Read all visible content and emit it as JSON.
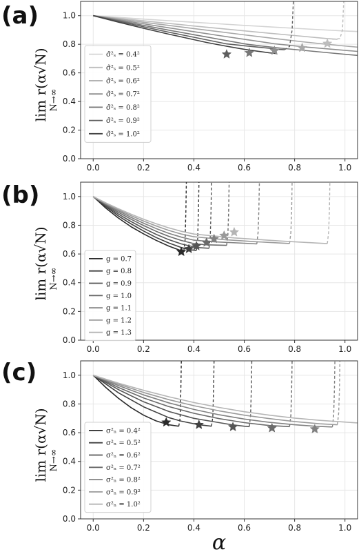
{
  "figure": {
    "xlabel": "α"
  },
  "chart_data": [
    {
      "type": "line",
      "letter": "(a)",
      "ylabel_main": "lim r(α√N)",
      "ylabel_sub": "N→∞",
      "xlim": [
        -0.05,
        1.05
      ],
      "ylim": [
        0.0,
        1.1
      ],
      "xticks": [
        "0.0",
        "0.2",
        "0.4",
        "0.6",
        "0.8",
        "1.0"
      ],
      "yticks": [
        "0.0",
        "0.2",
        "0.4",
        "0.6",
        "0.8",
        "1.0"
      ],
      "grid": true,
      "legend_position": "center-left",
      "series": [
        {
          "name": "σ̃²ₛ = 0.4²",
          "color": "#d4d4d4",
          "x": [
            0.0,
            0.1,
            0.2,
            0.3,
            0.4,
            0.5,
            0.6,
            0.7,
            0.8,
            0.9,
            1.0,
            1.05
          ],
          "y": [
            1.0,
            0.988,
            0.976,
            0.965,
            0.954,
            0.943,
            0.932,
            0.922,
            0.912,
            0.902,
            0.893,
            0.889
          ],
          "star": null,
          "dash": null
        },
        {
          "name": "σ̃²ₛ = 0.5²",
          "color": "#bdbdbd",
          "x": [
            0.0,
            0.1,
            0.2,
            0.3,
            0.4,
            0.5,
            0.6,
            0.7,
            0.8,
            0.9,
            0.93,
            0.97
          ],
          "y": [
            1.0,
            0.982,
            0.964,
            0.946,
            0.928,
            0.911,
            0.894,
            0.877,
            0.861,
            0.845,
            0.84,
            0.835
          ],
          "star": [
            0.93,
            0.805
          ],
          "dash": [
            [
              0.95,
              0.835
            ],
            [
              0.98,
              0.84
            ],
            [
              0.99,
              0.9
            ],
            [
              0.995,
              1.1
            ]
          ]
        },
        {
          "name": "σ̃²ₛ = 0.6²",
          "color": "#a8a8a8",
          "x": [
            0.0,
            0.1,
            0.2,
            0.3,
            0.4,
            0.5,
            0.6,
            0.7,
            0.8,
            0.83,
            0.95,
            1.05
          ],
          "y": [
            1.0,
            0.977,
            0.954,
            0.932,
            0.91,
            0.888,
            0.866,
            0.845,
            0.824,
            0.818,
            0.796,
            0.78
          ],
          "star": [
            0.83,
            0.775
          ],
          "dash": null
        },
        {
          "name": "σ̃²ₛ = 0.7²",
          "color": "#8f8f8f",
          "x": [
            0.0,
            0.1,
            0.2,
            0.3,
            0.4,
            0.5,
            0.6,
            0.7,
            0.72,
            0.85,
            0.95,
            1.05
          ],
          "y": [
            1.0,
            0.971,
            0.943,
            0.915,
            0.888,
            0.861,
            0.835,
            0.809,
            0.804,
            0.78,
            0.765,
            0.75
          ],
          "star": [
            0.72,
            0.755
          ],
          "dash": null
        },
        {
          "name": "σ̃²ₛ = 0.8²",
          "color": "#777777",
          "x": [
            0.0,
            0.1,
            0.2,
            0.3,
            0.4,
            0.5,
            0.6,
            0.62,
            0.75,
            0.85,
            0.95,
            1.05
          ],
          "y": [
            1.0,
            0.966,
            0.932,
            0.899,
            0.867,
            0.835,
            0.804,
            0.798,
            0.772,
            0.755,
            0.738,
            0.722
          ],
          "star": [
            0.62,
            0.74
          ],
          "dash": null
        },
        {
          "name": "σ̃²ₛ = 0.9²",
          "color": "#5e5e5e",
          "x": [
            0.0,
            0.1,
            0.2,
            0.3,
            0.4,
            0.53,
            0.6,
            0.7,
            0.73,
            0.76
          ],
          "y": [
            1.0,
            0.961,
            0.922,
            0.885,
            0.849,
            0.803,
            0.79,
            0.772,
            0.765,
            0.762
          ],
          "star": [
            0.53,
            0.73
          ],
          "dash": [
            [
              0.76,
              0.762
            ],
            [
              0.78,
              0.785
            ],
            [
              0.79,
              0.9
            ],
            [
              0.795,
              1.1
            ]
          ]
        },
        {
          "name": "σ̃²ₛ = 1.0²",
          "color": "#404040",
          "x": [
            0.0,
            0.1,
            0.2,
            0.3,
            0.4,
            0.45,
            0.5,
            0.55,
            0.6,
            0.65,
            0.7,
            0.73
          ],
          "y": [
            1.0,
            0.955,
            0.912,
            0.871,
            0.832,
            0.813,
            0.796,
            0.78,
            0.765,
            0.752,
            0.74,
            0.735
          ],
          "star": null,
          "dash": null
        }
      ]
    },
    {
      "type": "line",
      "letter": "(b)",
      "ylabel_main": "lim r(α√N)",
      "ylabel_sub": "N→∞",
      "xlim": [
        -0.05,
        1.05
      ],
      "ylim": [
        0.0,
        1.1
      ],
      "xticks": [
        "0.0",
        "0.2",
        "0.4",
        "0.6",
        "0.8",
        "1.0"
      ],
      "yticks": [
        "0.0",
        "0.2",
        "0.4",
        "0.6",
        "0.8",
        "1.0"
      ],
      "grid": true,
      "legend_position": "lower-left",
      "series": [
        {
          "name": "g = 0.7",
          "color": "#2a2a2a",
          "x": [
            0.0,
            0.05,
            0.1,
            0.15,
            0.2,
            0.25,
            0.3,
            0.35,
            0.36
          ],
          "y": [
            1.0,
            0.92,
            0.85,
            0.79,
            0.74,
            0.695,
            0.655,
            0.622,
            0.618
          ],
          "star": [
            0.35,
            0.615
          ],
          "dash": [
            [
              0.36,
              0.618
            ],
            [
              0.365,
              0.7
            ],
            [
              0.368,
              0.9
            ],
            [
              0.37,
              1.1
            ]
          ]
        },
        {
          "name": "g = 0.8",
          "color": "#404040",
          "x": [
            0.0,
            0.05,
            0.1,
            0.15,
            0.2,
            0.25,
            0.3,
            0.35,
            0.38,
            0.41
          ],
          "y": [
            1.0,
            0.93,
            0.865,
            0.81,
            0.76,
            0.715,
            0.677,
            0.645,
            0.63,
            0.625
          ],
          "star": [
            0.38,
            0.635
          ],
          "dash": [
            [
              0.41,
              0.625
            ],
            [
              0.415,
              0.7
            ],
            [
              0.418,
              0.9
            ],
            [
              0.42,
              1.1
            ]
          ]
        },
        {
          "name": "g = 0.9",
          "color": "#555555",
          "x": [
            0.0,
            0.05,
            0.1,
            0.15,
            0.2,
            0.25,
            0.3,
            0.35,
            0.41,
            0.46
          ],
          "y": [
            1.0,
            0.937,
            0.878,
            0.826,
            0.779,
            0.737,
            0.7,
            0.67,
            0.645,
            0.64
          ],
          "star": [
            0.41,
            0.655
          ],
          "dash": [
            [
              0.46,
              0.64
            ],
            [
              0.465,
              0.72
            ],
            [
              0.468,
              0.9
            ],
            [
              0.47,
              1.1
            ]
          ]
        },
        {
          "name": "g = 1.0",
          "color": "#6a6a6a",
          "x": [
            0.0,
            0.05,
            0.1,
            0.15,
            0.2,
            0.25,
            0.3,
            0.35,
            0.4,
            0.45,
            0.53
          ],
          "y": [
            1.0,
            0.943,
            0.89,
            0.842,
            0.798,
            0.758,
            0.723,
            0.694,
            0.672,
            0.664,
            0.66
          ],
          "star": [
            0.45,
            0.68
          ],
          "dash": [
            [
              0.53,
              0.66
            ],
            [
              0.535,
              0.74
            ],
            [
              0.538,
              0.9
            ],
            [
              0.54,
              1.1
            ]
          ]
        },
        {
          "name": "g = 1.1",
          "color": "#808080",
          "x": [
            0.0,
            0.05,
            0.1,
            0.15,
            0.2,
            0.25,
            0.3,
            0.35,
            0.4,
            0.48,
            0.6,
            0.65
          ],
          "y": [
            1.0,
            0.948,
            0.9,
            0.855,
            0.814,
            0.777,
            0.744,
            0.717,
            0.696,
            0.685,
            0.675,
            0.67
          ],
          "star": [
            0.48,
            0.705
          ],
          "dash": [
            [
              0.65,
              0.67
            ],
            [
              0.655,
              0.75
            ],
            [
              0.658,
              0.9
            ],
            [
              0.66,
              1.1
            ]
          ]
        },
        {
          "name": "g = 1.2",
          "color": "#9a9a9a",
          "x": [
            0.0,
            0.05,
            0.1,
            0.15,
            0.2,
            0.25,
            0.3,
            0.35,
            0.4,
            0.52,
            0.65,
            0.78
          ],
          "y": [
            1.0,
            0.952,
            0.908,
            0.867,
            0.829,
            0.795,
            0.764,
            0.739,
            0.72,
            0.7,
            0.685,
            0.673
          ],
          "star": [
            0.52,
            0.728
          ],
          "dash": [
            [
              0.78,
              0.673
            ],
            [
              0.785,
              0.75
            ],
            [
              0.788,
              0.9
            ],
            [
              0.79,
              1.1
            ]
          ]
        },
        {
          "name": "g = 1.3",
          "color": "#b5b5b5",
          "x": [
            0.0,
            0.05,
            0.1,
            0.15,
            0.2,
            0.25,
            0.3,
            0.35,
            0.4,
            0.56,
            0.75,
            0.93
          ],
          "y": [
            1.0,
            0.956,
            0.915,
            0.877,
            0.842,
            0.811,
            0.782,
            0.758,
            0.739,
            0.712,
            0.69,
            0.672
          ],
          "star": [
            0.56,
            0.752
          ],
          "dash": [
            [
              0.93,
              0.672
            ],
            [
              0.935,
              0.75
            ],
            [
              0.938,
              0.9
            ],
            [
              0.94,
              1.1
            ]
          ]
        }
      ]
    },
    {
      "type": "line",
      "letter": "(c)",
      "ylabel_main": "lim r(α√N)",
      "ylabel_sub": "N→∞",
      "xlim": [
        -0.05,
        1.05
      ],
      "ylim": [
        0.0,
        1.1
      ],
      "xticks": [
        "0.0",
        "0.2",
        "0.4",
        "0.6",
        "0.8",
        "1.0"
      ],
      "yticks": [
        "0.0",
        "0.2",
        "0.4",
        "0.6",
        "0.8",
        "1.0"
      ],
      "grid": true,
      "legend_position": "lower-left",
      "series": [
        {
          "name": "σ²ₙ = 0.4²",
          "color": "#2a2a2a",
          "x": [
            0.0,
            0.05,
            0.1,
            0.15,
            0.2,
            0.25,
            0.3,
            0.34
          ],
          "y": [
            1.0,
            0.915,
            0.84,
            0.775,
            0.722,
            0.682,
            0.655,
            0.645
          ],
          "star": [
            0.29,
            0.672
          ],
          "dash": [
            [
              0.34,
              0.645
            ],
            [
              0.345,
              0.7
            ],
            [
              0.348,
              0.9
            ],
            [
              0.35,
              1.1
            ]
          ]
        },
        {
          "name": "σ²ₙ = 0.5²",
          "color": "#404040",
          "x": [
            0.0,
            0.1,
            0.2,
            0.3,
            0.35,
            0.42,
            0.47
          ],
          "y": [
            1.0,
            0.878,
            0.78,
            0.705,
            0.68,
            0.655,
            0.645
          ],
          "star": [
            0.42,
            0.655
          ],
          "dash": [
            [
              0.47,
              0.645
            ],
            [
              0.475,
              0.71
            ],
            [
              0.478,
              0.9
            ],
            [
              0.48,
              1.1
            ]
          ]
        },
        {
          "name": "σ²ₙ = 0.6²",
          "color": "#555555",
          "x": [
            0.0,
            0.1,
            0.2,
            0.3,
            0.4,
            0.5,
            0.55,
            0.6,
            0.62
          ],
          "y": [
            1.0,
            0.9,
            0.815,
            0.748,
            0.7,
            0.67,
            0.655,
            0.645,
            0.642
          ],
          "star": [
            0.555,
            0.64
          ],
          "dash": [
            [
              0.62,
              0.642
            ],
            [
              0.625,
              0.72
            ],
            [
              0.628,
              0.9
            ],
            [
              0.63,
              1.1
            ]
          ]
        },
        {
          "name": "σ²ₙ = 0.7²",
          "color": "#6a6a6a",
          "x": [
            0.0,
            0.1,
            0.2,
            0.3,
            0.4,
            0.5,
            0.6,
            0.7,
            0.78
          ],
          "y": [
            1.0,
            0.915,
            0.842,
            0.782,
            0.735,
            0.698,
            0.67,
            0.65,
            0.642
          ],
          "star": [
            0.71,
            0.632
          ],
          "dash": [
            [
              0.78,
              0.642
            ],
            [
              0.785,
              0.72
            ],
            [
              0.788,
              0.9
            ],
            [
              0.79,
              1.1
            ]
          ]
        },
        {
          "name": "σ²ₙ = 0.8²",
          "color": "#808080",
          "x": [
            0.0,
            0.1,
            0.2,
            0.3,
            0.4,
            0.5,
            0.6,
            0.7,
            0.8,
            0.88,
            0.95
          ],
          "y": [
            1.0,
            0.928,
            0.863,
            0.808,
            0.762,
            0.725,
            0.695,
            0.672,
            0.655,
            0.645,
            0.64
          ],
          "star": [
            0.88,
            0.625
          ],
          "dash": [
            [
              0.95,
              0.64
            ],
            [
              0.955,
              0.72
            ],
            [
              0.958,
              0.9
            ],
            [
              0.96,
              1.1
            ]
          ]
        },
        {
          "name": "σ²ₙ = 0.9²",
          "color": "#9a9a9a",
          "x": [
            0.0,
            0.1,
            0.2,
            0.3,
            0.4,
            0.5,
            0.6,
            0.7,
            0.8,
            0.9,
            0.97
          ],
          "y": [
            1.0,
            0.938,
            0.88,
            0.83,
            0.788,
            0.752,
            0.722,
            0.698,
            0.678,
            0.662,
            0.655
          ],
          "star": null,
          "dash": [
            [
              0.97,
              0.655
            ],
            [
              0.975,
              0.74
            ],
            [
              0.978,
              0.9
            ],
            [
              0.98,
              1.1
            ]
          ]
        },
        {
          "name": "σ²ₙ = 1.0²",
          "color": "#b5b5b5",
          "x": [
            0.0,
            0.1,
            0.2,
            0.3,
            0.4,
            0.5,
            0.6,
            0.7,
            0.8,
            0.9,
            1.0,
            1.05
          ],
          "y": [
            1.0,
            0.945,
            0.895,
            0.85,
            0.81,
            0.776,
            0.746,
            0.722,
            0.702,
            0.686,
            0.674,
            0.668
          ],
          "star": null,
          "dash": null
        }
      ]
    }
  ]
}
